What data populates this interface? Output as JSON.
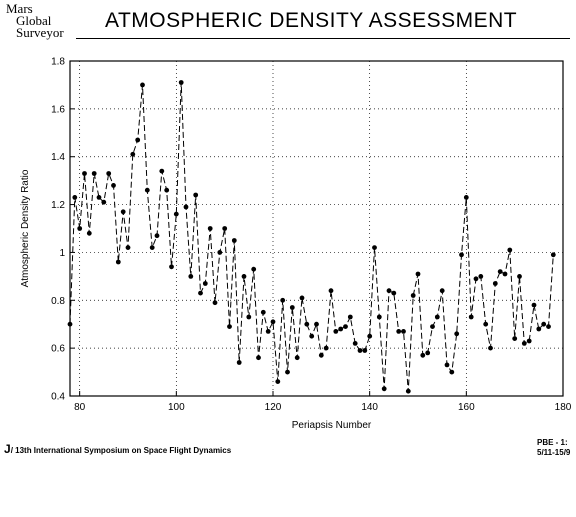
{
  "logo": {
    "line1": "Mars",
    "line2": "Global",
    "line3": "Surveyor"
  },
  "footer": {
    "left_mark": "J",
    "left_text": "/ 13th International Symposium on Space Flight Dynamics",
    "right_line1": "PBE - 1:",
    "right_line2": "5/11-15/9"
  },
  "chart_data": {
    "type": "line",
    "title": "ATMOSPHERIC DENSITY ASSESSMENT",
    "xlabel": "Periapsis Number",
    "ylabel": "Atmospheric Density Ratio",
    "xlim": [
      78,
      180
    ],
    "ylim": [
      0.4,
      1.8
    ],
    "xticks": [
      80,
      100,
      120,
      140,
      160,
      180
    ],
    "yticks": [
      0.4,
      0.6,
      0.8,
      1,
      1.2,
      1.4,
      1.6,
      1.8
    ],
    "xtick_labels": [
      "80",
      "100",
      "120",
      "140",
      "160",
      "180"
    ],
    "ytick_labels": [
      "0.4",
      "0.6",
      "0.8",
      "1",
      "1.2",
      "1.4",
      "1.6",
      "1.8"
    ],
    "grid": true,
    "line_style": "dashed",
    "marker": "circle",
    "series": [
      {
        "x": [
          78,
          79,
          80,
          81,
          82,
          83,
          84,
          85,
          86,
          87,
          88,
          89,
          90,
          91,
          92,
          93,
          94,
          95,
          96,
          97,
          98,
          99,
          100,
          101,
          102,
          103,
          104,
          105,
          106,
          107,
          108,
          109,
          110,
          111,
          112,
          113,
          114,
          115,
          116,
          117,
          118,
          119,
          120,
          121,
          122,
          123,
          124,
          125,
          126,
          127,
          128,
          129,
          130,
          131,
          132,
          133,
          134,
          135,
          136,
          137,
          138,
          139,
          140,
          141,
          142,
          143,
          144,
          145,
          146,
          147,
          148,
          149,
          150,
          151,
          152,
          153,
          154,
          155,
          156,
          157,
          158,
          159,
          160,
          161,
          162,
          163,
          164,
          165,
          166,
          167,
          168,
          169,
          170,
          171,
          172,
          173,
          174,
          175,
          176,
          177,
          178
        ],
        "y": [
          0.7,
          1.23,
          1.1,
          1.33,
          1.08,
          1.33,
          1.23,
          1.21,
          1.33,
          1.28,
          0.96,
          1.17,
          1.02,
          1.41,
          1.47,
          1.7,
          1.26,
          1.02,
          1.07,
          1.34,
          1.26,
          0.94,
          1.16,
          1.71,
          1.19,
          0.9,
          1.24,
          0.83,
          0.87,
          1.1,
          0.79,
          1.0,
          1.1,
          0.69,
          1.05,
          0.54,
          0.9,
          0.73,
          0.93,
          0.56,
          0.75,
          0.67,
          0.71,
          0.46,
          0.8,
          0.5,
          0.77,
          0.56,
          0.81,
          0.7,
          0.65,
          0.7,
          0.57,
          0.6,
          0.84,
          0.67,
          0.68,
          0.69,
          0.73,
          0.62,
          0.59,
          0.59,
          0.65,
          1.02,
          0.73,
          0.43,
          0.84,
          0.83,
          0.67,
          0.67,
          0.42,
          0.82,
          0.91,
          0.57,
          0.58,
          0.69,
          0.73,
          0.84,
          0.53,
          0.5,
          0.66,
          0.99,
          1.23,
          0.73,
          0.89,
          0.9,
          0.7,
          0.6,
          0.87,
          0.92,
          0.91,
          1.01,
          0.64,
          0.9,
          0.62,
          0.63,
          0.78,
          0.68,
          0.7,
          0.69,
          0.99
        ]
      }
    ]
  }
}
